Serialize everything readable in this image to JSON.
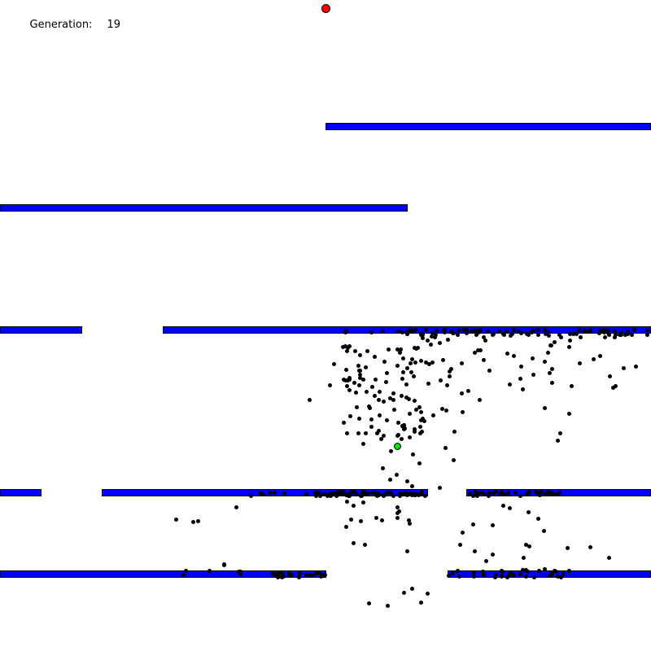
{
  "hud": {
    "label": "Generation:",
    "value": "19"
  },
  "colors": {
    "wall": "#0000ff",
    "goal": "#ff0000",
    "best": "#00dd00",
    "dot": "#000000",
    "background": "#ffffff"
  },
  "scene": {
    "generation": 19,
    "population_visible": "approx. 500 dots"
  }
}
